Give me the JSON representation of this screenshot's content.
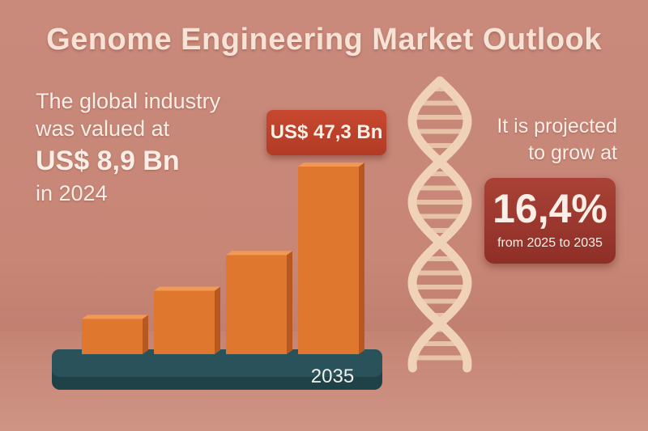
{
  "title": "Genome Engineering Market Outlook",
  "left_panel": {
    "line1": "The global industry",
    "line2": "was valued at",
    "value": "US$ 8,9 Bn",
    "year": "in 2024"
  },
  "right_panel": {
    "line1": "It is projected",
    "line2": "to grow at",
    "rate": "16,4%",
    "period": "from 2025 to 2035"
  },
  "value_badge": "US$ 47,3 Bn",
  "colors": {
    "background": "#c98a7c",
    "bar": "#e0772f",
    "base": "#244b52",
    "badge": "#b9402a",
    "rate_box": "#9c382e",
    "dna": "#efd2b8"
  },
  "chart_data": {
    "type": "bar",
    "categories": [
      "",
      "",
      "",
      "2035"
    ],
    "values": [
      8.9,
      16,
      25,
      47.3
    ],
    "title": "Genome Engineering Market Outlook",
    "xlabel": "",
    "ylabel": "",
    "ylim": [
      0,
      50
    ],
    "grid": false,
    "annotations": [
      "US$ 47,3 Bn"
    ]
  }
}
